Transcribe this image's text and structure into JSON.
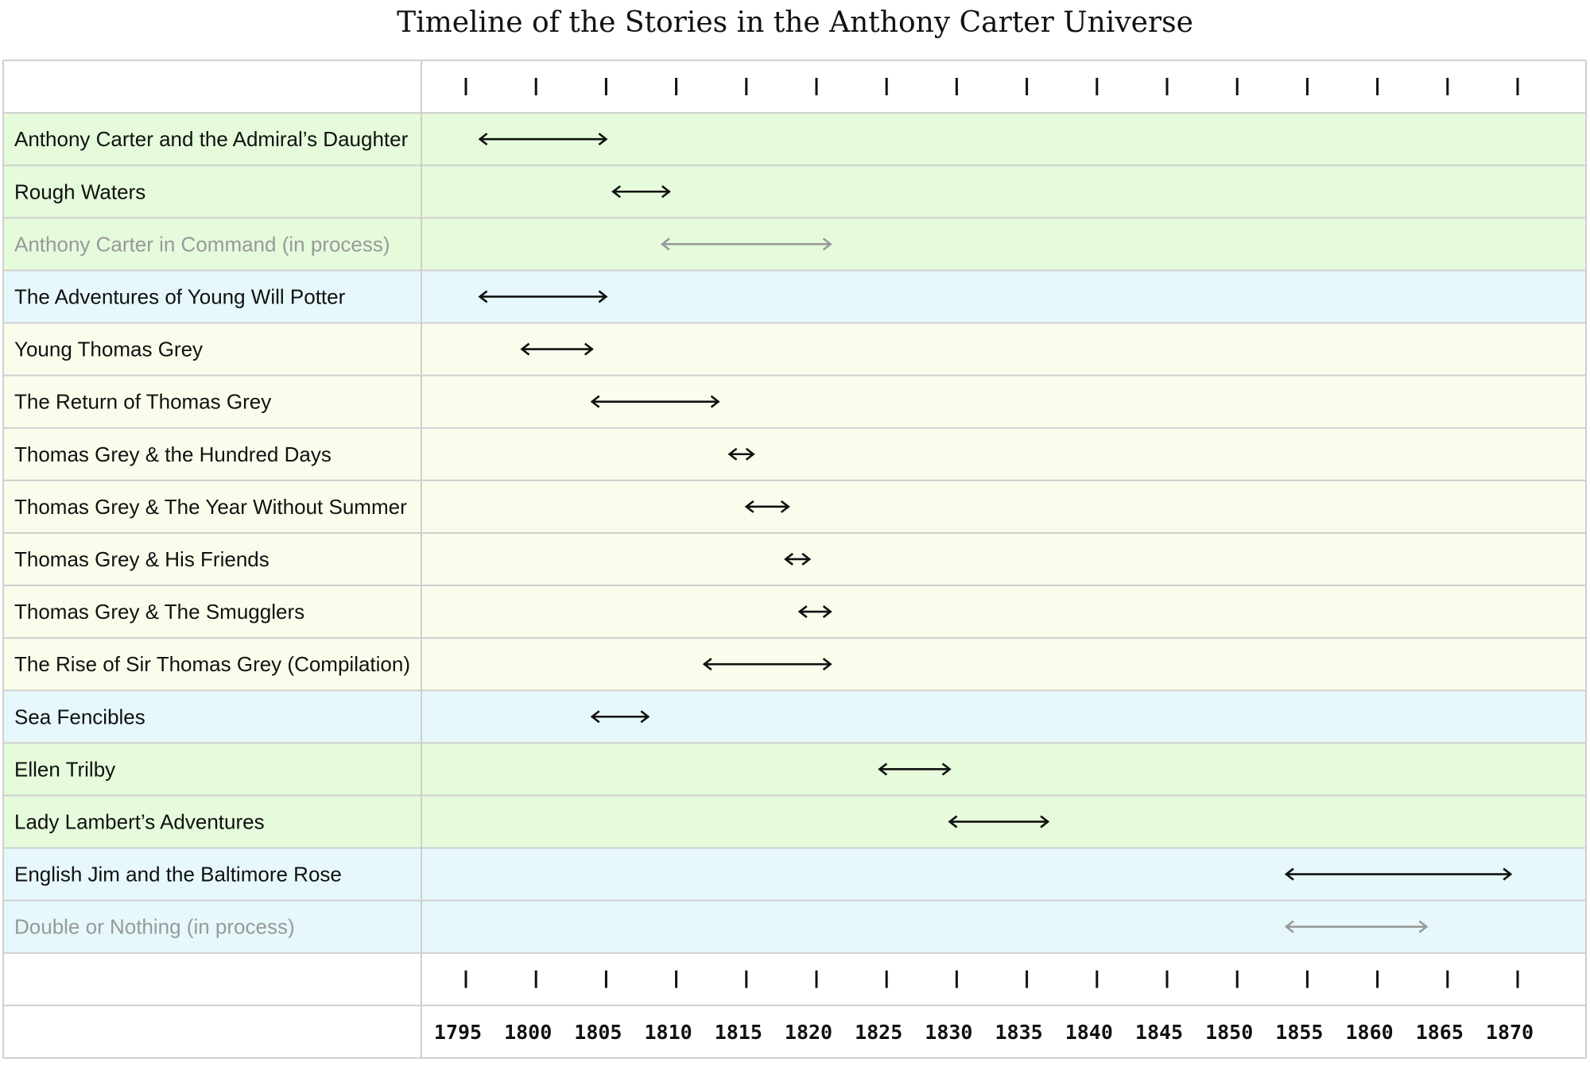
{
  "chart_data": {
    "type": "timeline",
    "title": "Timeline of the Stories in the Anthony Carter Universe",
    "x_ticks": [
      1795,
      1800,
      1805,
      1810,
      1815,
      1820,
      1825,
      1830,
      1835,
      1840,
      1845,
      1850,
      1855,
      1860,
      1865,
      1870
    ],
    "xlim": [
      1792,
      1874
    ],
    "grid": true,
    "colors": {
      "green": "#e5fbdb",
      "blue": "#e6f8fb",
      "yellow": "#fbfdec",
      "arrow": "#111111",
      "in_process": "#999999",
      "grid": "#cfcfcf"
    },
    "series": [
      {
        "name": "Anthony Carter and the Admiral’s Daughter",
        "start": 1796,
        "end": 1805,
        "group": "green",
        "status": "published"
      },
      {
        "name": "Rough Waters",
        "start": 1805.5,
        "end": 1809.5,
        "group": "green",
        "status": "published"
      },
      {
        "name": "Anthony Carter in Command (in process)",
        "start": 1809,
        "end": 1821,
        "group": "green",
        "status": "in process"
      },
      {
        "name": "The Adventures of Young Will Potter",
        "start": 1796,
        "end": 1805,
        "group": "blue",
        "status": "published"
      },
      {
        "name": "Young Thomas Grey",
        "start": 1799,
        "end": 1804,
        "group": "yellow",
        "status": "published"
      },
      {
        "name": "The Return of Thomas Grey",
        "start": 1804,
        "end": 1813,
        "group": "yellow",
        "status": "published"
      },
      {
        "name": "Thomas Grey & the Hundred Days",
        "start": 1813.8,
        "end": 1815.5,
        "group": "yellow",
        "status": "published"
      },
      {
        "name": "Thomas Grey & The Year Without Summer",
        "start": 1815,
        "end": 1818,
        "group": "yellow",
        "status": "published"
      },
      {
        "name": "Thomas Grey & His Friends",
        "start": 1817.8,
        "end": 1819.5,
        "group": "yellow",
        "status": "published"
      },
      {
        "name": "Thomas Grey & The Smugglers",
        "start": 1818.8,
        "end": 1821,
        "group": "yellow",
        "status": "published"
      },
      {
        "name": "The Rise of Sir Thomas Grey (Compilation)",
        "start": 1812,
        "end": 1821,
        "group": "yellow",
        "status": "compilation"
      },
      {
        "name": "Sea Fencibles",
        "start": 1804,
        "end": 1808,
        "group": "blue",
        "status": "published"
      },
      {
        "name": "Ellen Trilby",
        "start": 1824.5,
        "end": 1829.5,
        "group": "green",
        "status": "published"
      },
      {
        "name": "Lady Lambert’s Adventures",
        "start": 1829.5,
        "end": 1836.5,
        "group": "green",
        "status": "published"
      },
      {
        "name": "English Jim and the Baltimore Rose",
        "start": 1853.5,
        "end": 1869.5,
        "group": "blue",
        "status": "published"
      },
      {
        "name": "Double or Nothing (in process)",
        "start": 1853.5,
        "end": 1863.5,
        "group": "blue",
        "status": "in process"
      }
    ]
  }
}
